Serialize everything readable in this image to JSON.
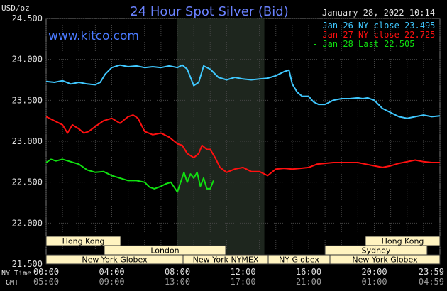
{
  "header": {
    "title": "24 Hour Spot Silver (Bid)",
    "timestamp": "January 28, 2022 10:14",
    "units": "USD/oz",
    "website": "www.kitco.com"
  },
  "legend": [
    {
      "label": "Jan 26 NY close 23.495",
      "color": "#40c8ff"
    },
    {
      "label": "Jan 27 NY close 22.725",
      "color": "#ff1010"
    },
    {
      "label": "Jan 28 Last 22.505",
      "color": "#10e010"
    }
  ],
  "axis": {
    "y_ticks": [
      "24.500",
      "24.000",
      "23.500",
      "23.000",
      "22.500",
      "22.000",
      "21.500"
    ],
    "x_ticks_ny": [
      "00:00",
      "04:00",
      "08:00",
      "12:00",
      "16:00",
      "20:00",
      "23:59"
    ],
    "x_ticks_gmt": [
      "05:00",
      "09:00",
      "13:00",
      "17:00",
      "21:00",
      "01:00",
      "04:59"
    ],
    "ny_time_label": "NY Time",
    "gmt_label": "GMT"
  },
  "sessions": {
    "row1": [
      {
        "label": "Hong Kong"
      },
      {
        "label": "Hong Kong"
      }
    ],
    "row2": [
      {
        "label": "London"
      },
      {
        "label": "Sydney"
      }
    ],
    "row3": [
      {
        "label": "New York Globex"
      },
      {
        "label": "New York NYMEX"
      },
      {
        "label": "NY Globex"
      },
      {
        "label": "New York Globex"
      }
    ]
  },
  "chart_data": {
    "type": "line",
    "x_unit": "hours (NY time)",
    "xlim": [
      0,
      24
    ],
    "ylim": [
      21.5,
      24.5
    ],
    "highlight_x": [
      8,
      13.3
    ],
    "series": [
      {
        "name": "Jan 26 NY close 23.495",
        "color": "#40c8ff",
        "x": [
          0,
          0.5,
          1,
          1.5,
          2,
          2.5,
          3,
          3.3,
          3.6,
          4,
          4.5,
          5,
          5.5,
          6,
          6.5,
          7,
          7.5,
          8,
          8.3,
          8.6,
          9,
          9.3,
          9.6,
          10,
          10.5,
          11,
          11.5,
          12,
          12.5,
          13,
          13.5,
          14,
          14.5,
          14.8,
          15,
          15.3,
          15.6,
          16,
          16.3,
          16.6,
          17,
          17.5,
          18,
          18.5,
          19,
          19.3,
          19.6,
          20,
          20.5,
          21,
          21.5,
          22,
          22.5,
          23,
          23.5,
          24
        ],
        "y": [
          23.73,
          23.72,
          23.74,
          23.7,
          23.72,
          23.7,
          23.69,
          23.72,
          23.82,
          23.9,
          23.93,
          23.91,
          23.92,
          23.9,
          23.91,
          23.9,
          23.92,
          23.9,
          23.93,
          23.88,
          23.68,
          23.72,
          23.92,
          23.88,
          23.78,
          23.75,
          23.78,
          23.76,
          23.75,
          23.76,
          23.77,
          23.8,
          23.85,
          23.87,
          23.7,
          23.6,
          23.55,
          23.55,
          23.48,
          23.45,
          23.45,
          23.5,
          23.52,
          23.52,
          23.53,
          23.52,
          23.53,
          23.5,
          23.4,
          23.35,
          23.3,
          23.28,
          23.3,
          23.32,
          23.3,
          23.31
        ]
      },
      {
        "name": "Jan 27 NY close 22.725",
        "color": "#ff1010",
        "x": [
          0,
          0.5,
          1,
          1.3,
          1.6,
          2,
          2.3,
          2.6,
          3,
          3.5,
          4,
          4.5,
          5,
          5.3,
          5.6,
          6,
          6.5,
          7,
          7.5,
          8,
          8.3,
          8.6,
          9,
          9.3,
          9.5,
          9.8,
          10,
          10.3,
          10.6,
          11,
          11.5,
          12,
          12.5,
          13,
          13.5,
          14,
          14.5,
          15,
          15.5,
          16,
          16.5,
          17,
          17.5,
          18,
          18.5,
          19,
          19.5,
          20,
          20.5,
          21,
          21.5,
          22,
          22.5,
          23,
          23.5,
          24
        ],
        "y": [
          23.3,
          23.25,
          23.2,
          23.1,
          23.2,
          23.15,
          23.1,
          23.12,
          23.18,
          23.25,
          23.28,
          23.22,
          23.3,
          23.32,
          23.28,
          23.12,
          23.08,
          23.1,
          23.05,
          22.97,
          22.95,
          22.85,
          22.8,
          22.85,
          22.95,
          22.9,
          22.9,
          22.8,
          22.68,
          22.62,
          22.66,
          22.68,
          22.63,
          22.63,
          22.58,
          22.66,
          22.67,
          22.66,
          22.67,
          22.68,
          22.72,
          22.73,
          22.74,
          22.74,
          22.74,
          22.74,
          22.72,
          22.7,
          22.68,
          22.7,
          22.73,
          22.75,
          22.77,
          22.75,
          22.74,
          22.74
        ]
      },
      {
        "name": "Jan 28 Last 22.505",
        "color": "#10e010",
        "x": [
          0,
          0.3,
          0.6,
          1,
          1.5,
          2,
          2.5,
          3,
          3.5,
          4,
          4.5,
          5,
          5.5,
          6,
          6.3,
          6.6,
          7,
          7.3,
          7.6,
          8,
          8.2,
          8.4,
          8.6,
          8.8,
          9,
          9.2,
          9.4,
          9.6,
          9.8,
          10,
          10.2
        ],
        "y": [
          22.74,
          22.78,
          22.76,
          22.78,
          22.75,
          22.72,
          22.65,
          22.62,
          22.63,
          22.58,
          22.55,
          22.52,
          22.52,
          22.5,
          22.44,
          22.42,
          22.45,
          22.48,
          22.5,
          22.38,
          22.5,
          22.62,
          22.5,
          22.6,
          22.55,
          22.62,
          22.45,
          22.55,
          22.42,
          22.42,
          22.52
        ]
      }
    ]
  }
}
